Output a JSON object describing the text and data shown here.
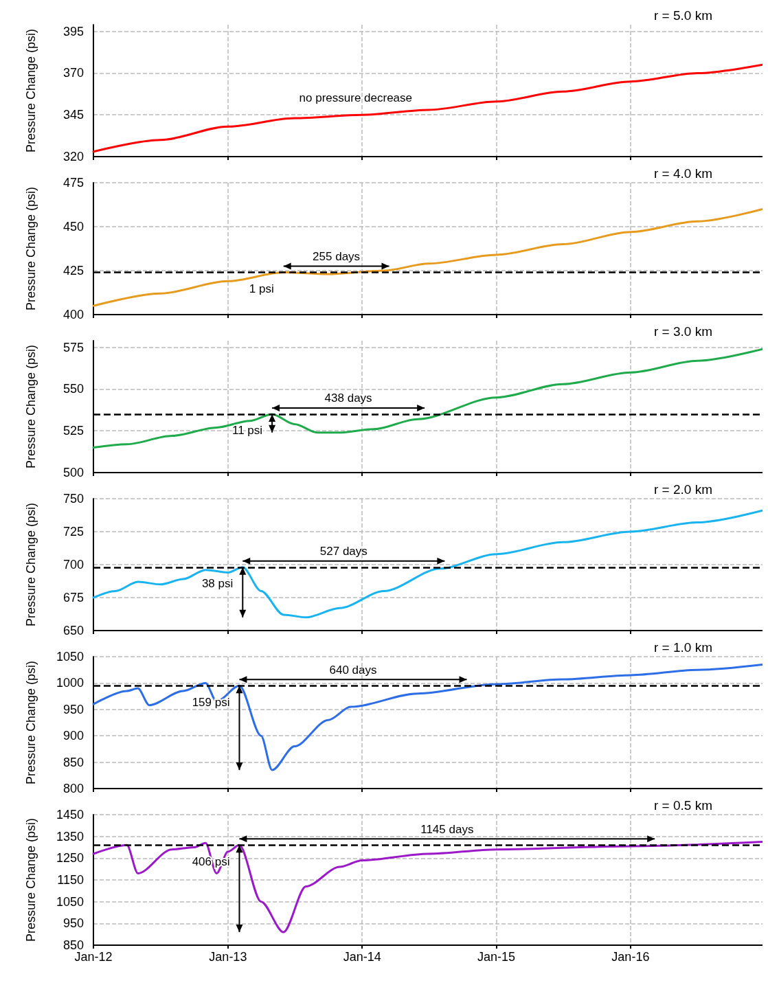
{
  "chart_data": [
    {
      "type": "line",
      "title": "r = 5.0 km",
      "ylabel": "Pressure Change (psi)",
      "xlim": [
        "2012-01-01",
        "2016-12-25"
      ],
      "xticks": [
        {
          "value": "2012-01-01",
          "label": null
        },
        {
          "value": "2013-01-01",
          "label": null
        },
        {
          "value": "2014-01-01",
          "label": null
        },
        {
          "value": "2015-01-01",
          "label": null
        },
        {
          "value": "2016-01-01",
          "label": null
        }
      ],
      "ylim": [
        320,
        399
      ],
      "yticks": [
        320,
        345,
        370,
        395
      ],
      "tick_labels": "y",
      "grid": true,
      "marker": "none",
      "line_style": "solid",
      "x": [
        "2012-01-01",
        "2012-07-01",
        "2013-01-01",
        "2013-07-01",
        "2014-01-01",
        "2014-07-01",
        "2015-01-01",
        "2015-07-01",
        "2016-01-01",
        "2016-07-01",
        "2016-12-25"
      ],
      "series": [
        {
          "color": "#ff0000",
          "values": [
            323,
            330,
            338,
            343,
            345,
            348,
            353,
            359,
            365,
            370,
            375
          ]
        }
      ],
      "annotations": [
        "no pressure decrease"
      ]
    },
    {
      "type": "line",
      "title": "r = 4.0 km",
      "ylabel": "Pressure Change (psi)",
      "xlim": [
        "2012-01-01",
        "2016-12-25"
      ],
      "xticks": [
        {
          "value": "2012-01-01",
          "label": null
        },
        {
          "value": "2013-01-01",
          "label": null
        },
        {
          "value": "2014-01-01",
          "label": null
        },
        {
          "value": "2015-01-01",
          "label": null
        },
        {
          "value": "2016-01-01",
          "label": null
        }
      ],
      "ylim": [
        400,
        475
      ],
      "yticks": [
        400,
        425,
        450,
        475
      ],
      "tick_labels": "y",
      "grid": true,
      "marker": "none",
      "line_style": "solid",
      "x": [
        "2012-01-01",
        "2012-07-01",
        "2013-01-01",
        "2013-06-01",
        "2013-10-01",
        "2014-03-01",
        "2014-07-01",
        "2015-01-01",
        "2015-07-01",
        "2016-01-01",
        "2016-07-01",
        "2016-12-25"
      ],
      "series": [
        {
          "color": "#e69b1e",
          "values": [
            405,
            412,
            419,
            424,
            423,
            425,
            429,
            434,
            440,
            447,
            453,
            460
          ]
        }
      ],
      "ref_lines": [
        {
          "axis": "y",
          "value": 424,
          "label": null,
          "color": "#000000",
          "line_style": "dashed"
        }
      ],
      "annotations": [
        "255 days",
        {
          "text": "1 psi",
          "x": "2013-06-01",
          "y": 424
        }
      ]
    },
    {
      "type": "line",
      "title": "r = 3.0 km",
      "ylabel": "Pressure Change (psi)",
      "xlim": [
        "2012-01-01",
        "2016-12-25"
      ],
      "xticks": [
        {
          "value": "2012-01-01",
          "label": null
        },
        {
          "value": "2013-01-01",
          "label": null
        },
        {
          "value": "2014-01-01",
          "label": null
        },
        {
          "value": "2015-01-01",
          "label": null
        },
        {
          "value": "2016-01-01",
          "label": null
        }
      ],
      "ylim": [
        500,
        579
      ],
      "yticks": [
        500,
        525,
        550,
        575
      ],
      "tick_labels": "y",
      "grid": true,
      "marker": "none",
      "line_style": "solid",
      "x": [
        "2012-01-01",
        "2012-04-01",
        "2012-08-01",
        "2012-12-01",
        "2013-03-01",
        "2013-05-01",
        "2013-07-01",
        "2013-09-01",
        "2013-11-01",
        "2014-02-01",
        "2014-06-01",
        "2015-01-01",
        "2015-07-01",
        "2016-01-01",
        "2016-07-01",
        "2016-12-25"
      ],
      "series": [
        {
          "color": "#1faa4b",
          "values": [
            515,
            517,
            522,
            527,
            531,
            535,
            529,
            524,
            524,
            526,
            532,
            545,
            553,
            560,
            567,
            574
          ]
        }
      ],
      "ref_lines": [
        {
          "axis": "y",
          "value": 535,
          "label": null,
          "color": "#000000",
          "line_style": "dashed"
        }
      ],
      "annotations": [
        "438 days",
        {
          "text": "11 psi",
          "x": "2013-05-01",
          "y": 535
        }
      ]
    },
    {
      "type": "line",
      "title": "r = 2.0 km",
      "ylabel": "Pressure Change (psi)",
      "xlim": [
        "2012-01-01",
        "2016-12-25"
      ],
      "xticks": [
        {
          "value": "2012-01-01",
          "label": null
        },
        {
          "value": "2013-01-01",
          "label": null
        },
        {
          "value": "2014-01-01",
          "label": null
        },
        {
          "value": "2015-01-01",
          "label": null
        },
        {
          "value": "2016-01-01",
          "label": null
        }
      ],
      "ylim": [
        650,
        750
      ],
      "yticks": [
        650,
        675,
        700,
        725,
        750
      ],
      "tick_labels": "y",
      "grid": true,
      "marker": "none",
      "line_style": "solid",
      "x": [
        "2012-01-01",
        "2012-03-01",
        "2012-05-01",
        "2012-07-01",
        "2012-09-01",
        "2012-11-01",
        "2013-01-01",
        "2013-02-10",
        "2013-04-01",
        "2013-06-01",
        "2013-08-01",
        "2013-11-01",
        "2014-03-01",
        "2014-08-01",
        "2015-01-01",
        "2015-07-01",
        "2016-01-01",
        "2016-07-01",
        "2016-12-25"
      ],
      "series": [
        {
          "color": "#19b4f0",
          "values": [
            675,
            680,
            687,
            685,
            689,
            696,
            694,
            698,
            680,
            662,
            660,
            667,
            680,
            697,
            708,
            717,
            725,
            732,
            741
          ]
        }
      ],
      "ref_lines": [
        {
          "axis": "y",
          "value": 698,
          "label": null,
          "color": "#000000",
          "line_style": "dashed"
        }
      ],
      "annotations": [
        "527 days",
        {
          "text": "38 psi",
          "x": "2013-02-10",
          "y": 698
        }
      ]
    },
    {
      "type": "line",
      "title": "r = 1.0 km",
      "ylabel": "Pressure Change (psi)",
      "xlim": [
        "2012-01-01",
        "2016-12-25"
      ],
      "xticks": [
        {
          "value": "2012-01-01",
          "label": null
        },
        {
          "value": "2013-01-01",
          "label": null
        },
        {
          "value": "2014-01-01",
          "label": null
        },
        {
          "value": "2015-01-01",
          "label": null
        },
        {
          "value": "2016-01-01",
          "label": null
        }
      ],
      "ylim": [
        800,
        1050
      ],
      "yticks": [
        800,
        850,
        900,
        950,
        1000,
        1050
      ],
      "tick_labels": "y",
      "grid": true,
      "marker": "none",
      "line_style": "solid",
      "x": [
        "2012-01-01",
        "2012-04-01",
        "2012-05-01",
        "2012-06-01",
        "2012-09-01",
        "2012-11-01",
        "2012-12-01",
        "2013-02-01",
        "2013-04-01",
        "2013-05-01",
        "2013-07-01",
        "2013-10-01",
        "2013-12-01",
        "2014-06-01",
        "2015-01-01",
        "2015-07-01",
        "2016-01-01",
        "2016-07-01",
        "2016-12-25"
      ],
      "series": [
        {
          "color": "#2d6ee6",
          "values": [
            960,
            985,
            990,
            958,
            985,
            1000,
            965,
            995,
            900,
            835,
            880,
            930,
            955,
            980,
            998,
            1007,
            1015,
            1025,
            1035
          ]
        }
      ],
      "ref_lines": [
        {
          "axis": "y",
          "value": 995,
          "label": null,
          "color": "#000000",
          "line_style": "dashed"
        }
      ],
      "annotations": [
        "640 days",
        {
          "text": "159 psi",
          "x": "2013-02-01",
          "y": 995
        }
      ]
    },
    {
      "type": "line",
      "title": "r = 0.5 km",
      "ylabel": "Pressure Change (psi)",
      "xlim": [
        "2012-01-01",
        "2016-12-25"
      ],
      "xticks": [
        {
          "value": "2012-01-01",
          "label": "Jan-12"
        },
        {
          "value": "2013-01-01",
          "label": "Jan-13"
        },
        {
          "value": "2014-01-01",
          "label": "Jan-14"
        },
        {
          "value": "2015-01-01",
          "label": "Jan-15"
        },
        {
          "value": "2016-01-01",
          "label": "Jan-16"
        }
      ],
      "ylim": [
        850,
        1450
      ],
      "yticks": [
        850,
        950,
        1050,
        1150,
        1250,
        1350,
        1450
      ],
      "grid": true,
      "marker": "none",
      "line_style": "solid",
      "x": [
        "2012-01-01",
        "2012-04-01",
        "2012-05-01",
        "2012-08-01",
        "2012-10-01",
        "2012-11-01",
        "2012-12-01",
        "2013-01-01",
        "2013-02-01",
        "2013-04-01",
        "2013-06-01",
        "2013-08-01",
        "2013-11-01",
        "2014-01-01",
        "2014-07-01",
        "2015-01-01",
        "2016-01-01",
        "2016-12-25"
      ],
      "series": [
        {
          "color": "#9b19c8",
          "values": [
            1270,
            1310,
            1180,
            1290,
            1300,
            1320,
            1180,
            1280,
            1310,
            1050,
            910,
            1120,
            1210,
            1240,
            1270,
            1290,
            1305,
            1325
          ]
        }
      ],
      "ref_lines": [
        {
          "axis": "y",
          "value": 1310,
          "label": null,
          "color": "#000000",
          "line_style": "dashed"
        }
      ],
      "annotations": [
        "1145 days",
        {
          "text": "406 psi",
          "x": "2013-02-01",
          "y": 1310
        }
      ]
    }
  ]
}
